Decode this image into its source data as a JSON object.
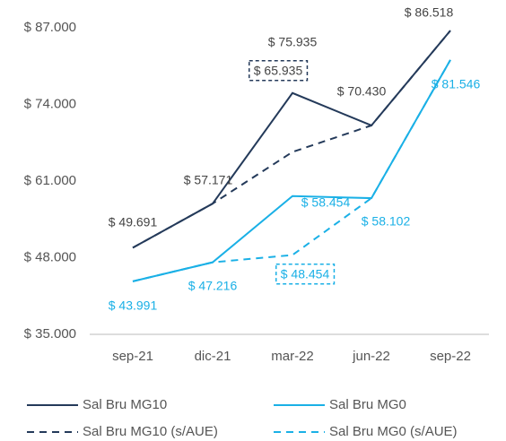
{
  "chart_data": {
    "type": "line",
    "categories": [
      "sep-21",
      "dic-21",
      "mar-22",
      "jun-22",
      "sep-22"
    ],
    "ylim": [
      35000,
      87000
    ],
    "yticks": [
      {
        "value": 35000,
        "label": "$ 35.000"
      },
      {
        "value": 48000,
        "label": "$ 48.000"
      },
      {
        "value": 61000,
        "label": "$ 61.000"
      },
      {
        "value": 74000,
        "label": "$ 74.000"
      },
      {
        "value": 87000,
        "label": "$ 87.000"
      }
    ],
    "grid": false,
    "legend": "bottom",
    "series": [
      {
        "name": "Sal Bru MG10",
        "color": "#243a5a",
        "dashed": false,
        "values": [
          49691,
          57171,
          75935,
          70430,
          86518
        ],
        "value_labels": [
          "$ 49.691",
          "$ 57.171",
          "$ 75.935",
          "$ 70.430",
          "$ 86.518"
        ]
      },
      {
        "name": "Sal Bru MG0",
        "color": "#1ab0e6",
        "dashed": false,
        "values": [
          43991,
          47216,
          58454,
          58102,
          81546
        ],
        "value_labels": [
          "$ 43.991",
          "$ 47.216",
          "$ 58.454",
          "$ 58.102",
          "$ 81.546"
        ]
      },
      {
        "name": "Sal Bru MG10 (s/AUE)",
        "color": "#243a5a",
        "dashed": true,
        "values": [
          49691,
          57171,
          65935,
          70430,
          86518
        ],
        "value_labels": [
          null,
          null,
          "$ 65.935",
          null,
          null
        ]
      },
      {
        "name": "Sal Bru MG0 (s/AUE)",
        "color": "#1ab0e6",
        "dashed": true,
        "values": [
          43991,
          47216,
          48454,
          58102,
          81546
        ],
        "value_labels": [
          null,
          null,
          "$ 48.454",
          null,
          null
        ]
      }
    ]
  }
}
